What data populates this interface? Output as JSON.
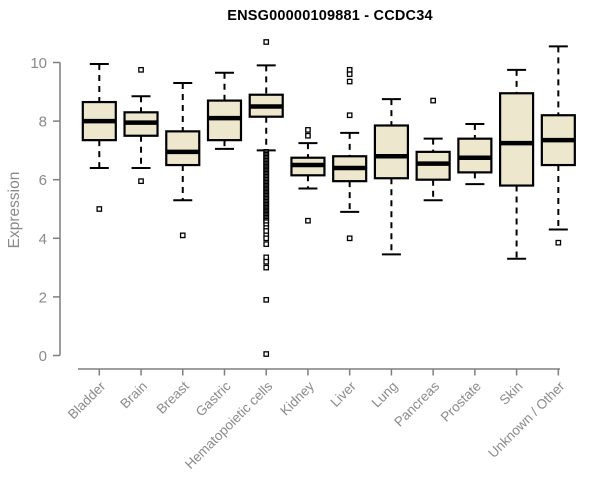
{
  "chart_data": {
    "type": "boxplot",
    "title": "ENSG00000109881 - CCDC34",
    "ylabel": "Expression",
    "xlabel": "",
    "ylim": [
      0,
      10
    ],
    "yticks": [
      0,
      2,
      4,
      6,
      8,
      10
    ],
    "grid": false,
    "legend": "none",
    "categories": [
      "Bladder",
      "Brain",
      "Breast",
      "Gastric",
      "Hematopoietic cells",
      "Kidney",
      "Liver",
      "Lung",
      "Pancreas",
      "Prostate",
      "Skin",
      "Unknown / Other"
    ],
    "series": [
      {
        "name": "Bladder",
        "low": 6.4,
        "q1": 7.35,
        "median": 8.0,
        "q3": 8.65,
        "high": 9.95,
        "outliers": [
          5.0
        ]
      },
      {
        "name": "Brain",
        "low": 6.4,
        "q1": 7.5,
        "median": 7.95,
        "q3": 8.3,
        "high": 8.85,
        "outliers": [
          9.75,
          5.95
        ]
      },
      {
        "name": "Breast",
        "low": 5.3,
        "q1": 6.5,
        "median": 6.95,
        "q3": 7.65,
        "high": 9.3,
        "outliers": [
          4.1
        ]
      },
      {
        "name": "Gastric",
        "low": 7.05,
        "q1": 7.35,
        "median": 8.1,
        "q3": 8.7,
        "high": 9.65,
        "outliers": []
      },
      {
        "name": "Hematopoietic cells",
        "low": 7.0,
        "q1": 8.15,
        "median": 8.5,
        "q3": 8.9,
        "high": 9.9,
        "outliers": [
          10.7,
          6.95,
          6.9,
          6.85,
          6.8,
          6.75,
          6.7,
          6.65,
          6.6,
          6.55,
          6.5,
          6.45,
          6.4,
          6.35,
          6.3,
          6.25,
          6.2,
          6.15,
          6.1,
          6.05,
          6.0,
          5.95,
          5.9,
          5.85,
          5.8,
          5.75,
          5.7,
          5.65,
          5.6,
          5.55,
          5.5,
          5.45,
          5.4,
          5.35,
          5.3,
          5.25,
          5.2,
          5.15,
          5.1,
          5.05,
          5.0,
          4.95,
          4.9,
          4.85,
          4.8,
          4.75,
          4.7,
          4.65,
          4.6,
          4.55,
          4.45,
          4.35,
          4.25,
          4.1,
          4.0,
          3.8,
          3.35,
          3.2,
          3.0,
          1.9,
          0.05
        ]
      },
      {
        "name": "Kidney",
        "low": 5.7,
        "q1": 6.15,
        "median": 6.5,
        "q3": 6.75,
        "high": 7.25,
        "outliers": [
          7.7,
          7.5,
          4.6
        ]
      },
      {
        "name": "Liver",
        "low": 4.9,
        "q1": 5.95,
        "median": 6.4,
        "q3": 6.8,
        "high": 7.6,
        "outliers": [
          9.75,
          9.6,
          9.35,
          8.2,
          4.0
        ]
      },
      {
        "name": "Lung",
        "low": 3.45,
        "q1": 6.05,
        "median": 6.8,
        "q3": 7.85,
        "high": 8.75,
        "outliers": []
      },
      {
        "name": "Pancreas",
        "low": 5.3,
        "q1": 6.0,
        "median": 6.55,
        "q3": 6.95,
        "high": 7.4,
        "outliers": [
          8.7
        ]
      },
      {
        "name": "Prostate",
        "low": 5.85,
        "q1": 6.25,
        "median": 6.75,
        "q3": 7.4,
        "high": 7.9,
        "outliers": []
      },
      {
        "name": "Skin",
        "low": 3.3,
        "q1": 5.8,
        "median": 7.25,
        "q3": 8.95,
        "high": 9.75,
        "outliers": []
      },
      {
        "name": "Unknown / Other",
        "low": 4.3,
        "q1": 6.5,
        "median": 7.35,
        "q3": 8.2,
        "high": 10.55,
        "outliers": [
          3.85
        ]
      }
    ],
    "colors": {
      "box_fill": "#EDE7CD",
      "box_border": "#000000",
      "median": "#000000",
      "whisker": "#000000",
      "outlier_fill": "#FFFFFF",
      "axis": "#7F7F7F",
      "tick_label": "#8A8A8A",
      "title": "#000000",
      "background": "#FFFFFF"
    }
  }
}
